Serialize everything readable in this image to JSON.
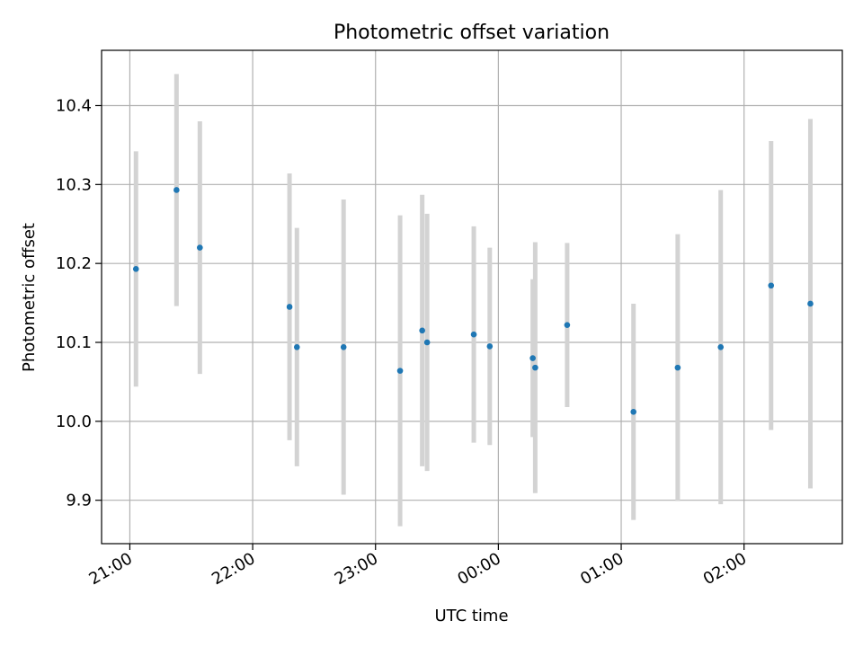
{
  "chart_data": {
    "type": "scatter",
    "title": "Photometric offset variation",
    "xlabel": "UTC time",
    "ylabel": "Photometric offset",
    "x_unit": "hours since 21:00 UTC",
    "xlim": [
      -0.23,
      5.8
    ],
    "ylim": [
      9.845,
      10.47
    ],
    "grid": true,
    "legend": "none",
    "x_ticks": [
      {
        "value": 0,
        "label": "21:00"
      },
      {
        "value": 1,
        "label": "22:00"
      },
      {
        "value": 2,
        "label": "23:00"
      },
      {
        "value": 3,
        "label": "00:00"
      },
      {
        "value": 4,
        "label": "01:00"
      },
      {
        "value": 5,
        "label": "02:00"
      }
    ],
    "y_ticks": [
      {
        "value": 9.9,
        "label": "9.9"
      },
      {
        "value": 10.0,
        "label": "10.0"
      },
      {
        "value": 10.1,
        "label": "10.1"
      },
      {
        "value": 10.2,
        "label": "10.2"
      },
      {
        "value": 10.3,
        "label": "10.3"
      },
      {
        "value": 10.4,
        "label": "10.4"
      }
    ],
    "points": [
      {
        "x": 0.05,
        "y": 10.193,
        "err": 0.149
      },
      {
        "x": 0.38,
        "y": 10.293,
        "err": 0.147
      },
      {
        "x": 0.57,
        "y": 10.22,
        "err": 0.16
      },
      {
        "x": 1.3,
        "y": 10.145,
        "err": 0.169
      },
      {
        "x": 1.36,
        "y": 10.094,
        "err": 0.151
      },
      {
        "x": 1.74,
        "y": 10.094,
        "err": 0.187
      },
      {
        "x": 2.2,
        "y": 10.064,
        "err": 0.197
      },
      {
        "x": 2.38,
        "y": 10.115,
        "err": 0.172
      },
      {
        "x": 2.42,
        "y": 10.1,
        "err": 0.163
      },
      {
        "x": 2.8,
        "y": 10.11,
        "err": 0.137
      },
      {
        "x": 2.93,
        "y": 10.095,
        "err": 0.125
      },
      {
        "x": 3.28,
        "y": 10.08,
        "err": 0.1
      },
      {
        "x": 3.3,
        "y": 10.068,
        "err": 0.159
      },
      {
        "x": 3.56,
        "y": 10.122,
        "err": 0.104
      },
      {
        "x": 4.1,
        "y": 10.012,
        "err": 0.137
      },
      {
        "x": 4.46,
        "y": 10.068,
        "err": 0.169
      },
      {
        "x": 4.81,
        "y": 10.094,
        "err": 0.199
      },
      {
        "x": 5.22,
        "y": 10.172,
        "err": 0.183
      },
      {
        "x": 5.54,
        "y": 10.149,
        "err": 0.234
      }
    ],
    "colors": {
      "point": "#1f77b4",
      "errorbar": "#d3d3d3",
      "grid": "#b0b0b0",
      "axes": "#000000"
    }
  }
}
